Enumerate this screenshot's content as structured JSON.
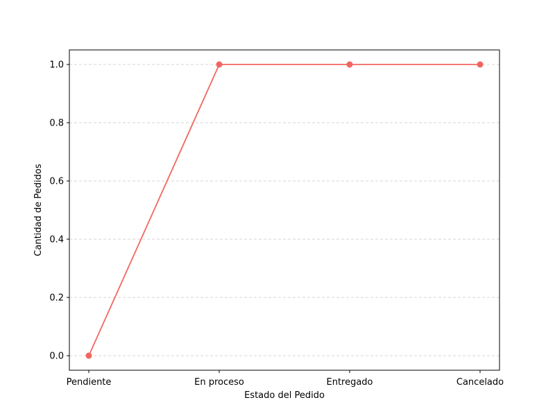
{
  "chart_data": {
    "type": "line",
    "title": "",
    "xlabel": "Estado del Pedido",
    "ylabel": "Cantidad de Pedidos",
    "categories": [
      "Pendiente",
      "En proceso",
      "Entregado",
      "Cancelado"
    ],
    "series": [
      {
        "values": [
          0,
          1,
          1,
          1
        ],
        "color": "#f26660",
        "marker": "circle"
      }
    ],
    "ylim": [
      -0.05,
      1.05
    ],
    "yticks": [
      0.0,
      0.2,
      0.4,
      0.6,
      0.8,
      1.0
    ],
    "ytick_labels": [
      "0.0",
      "0.2",
      "0.4",
      "0.6",
      "0.8",
      "1.0"
    ],
    "grid": {
      "y": true,
      "x": false,
      "style": "dashed",
      "color": "#c8c8c8"
    },
    "legend": "none"
  }
}
